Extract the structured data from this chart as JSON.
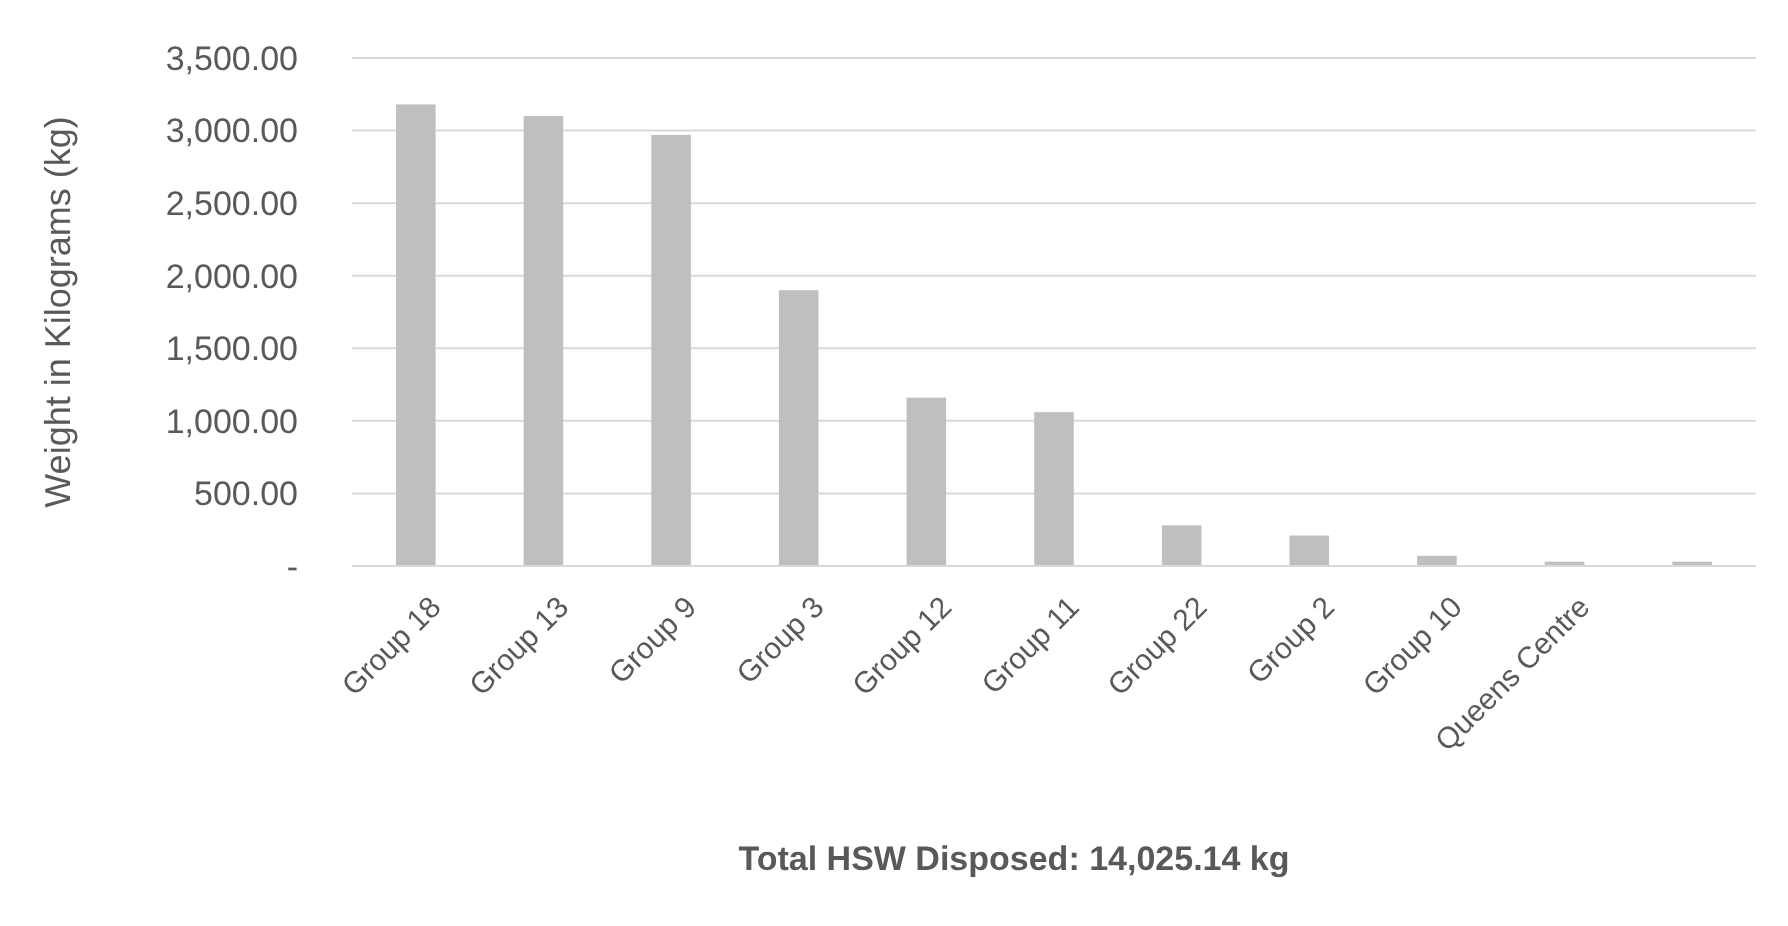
{
  "chart_data": {
    "type": "bar",
    "xlabel": "Total HSW Disposed: 14,025.14 kg",
    "ylabel": "Weight in Kilograms (kg)",
    "categories": [
      "Group 18",
      "Group 13",
      "Group 9",
      "Group 3",
      "Group 12",
      "Group 11",
      "Group 22",
      "Group 2",
      "Group 10",
      "Queens Centre",
      null
    ],
    "values": [
      3180,
      3100,
      2970,
      1900,
      1160,
      1060,
      280,
      210,
      70,
      30,
      30
    ],
    "color": "#bfbfbf",
    "ylim": [
      0,
      3500
    ],
    "yticks": [
      {
        "value": 0,
        "label": "-"
      },
      {
        "value": 500,
        "label": "500.00"
      },
      {
        "value": 1000,
        "label": "1,000.00"
      },
      {
        "value": 1500,
        "label": "1,500.00"
      },
      {
        "value": 2000,
        "label": "2,000.00"
      },
      {
        "value": 2500,
        "label": "2,500.00"
      },
      {
        "value": 3000,
        "label": "3,000.00"
      },
      {
        "value": 3500,
        "label": "3,500.00"
      }
    ],
    "grid": "y"
  }
}
